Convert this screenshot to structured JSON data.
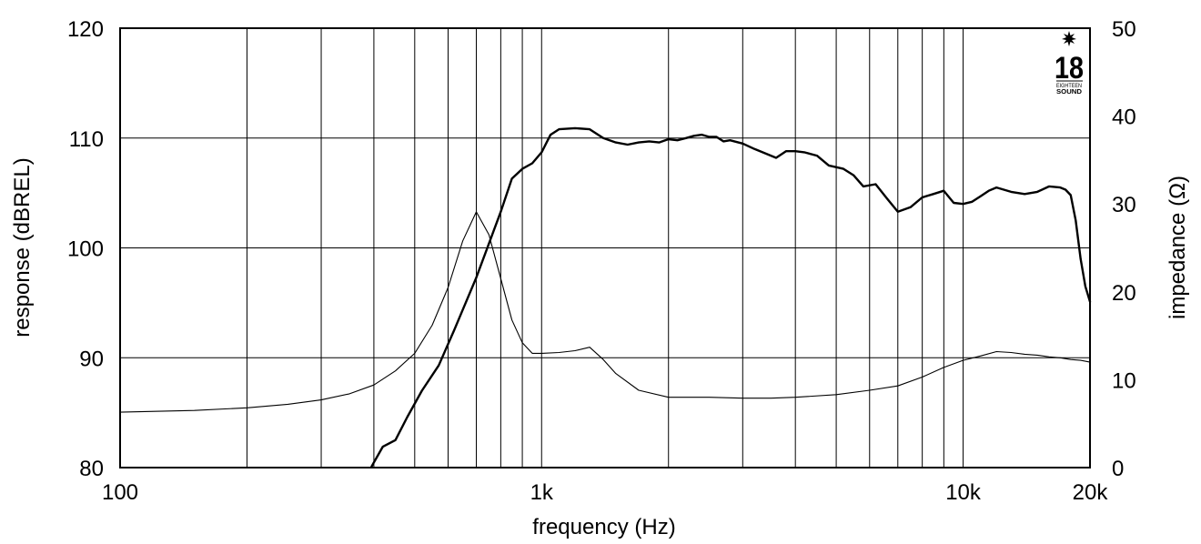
{
  "chart_data": {
    "type": "line",
    "xlabel": "frequency (Hz)",
    "ylabel_left": "response (dBREL)",
    "ylabel_right": "impedance (Ω)",
    "x_scale": "log",
    "xlim": [
      100,
      20000
    ],
    "ylim_left": [
      80,
      120
    ],
    "ylim_right": [
      0,
      50
    ],
    "grid": true,
    "x_ticks": [
      {
        "value": 100,
        "label": "100"
      },
      {
        "value": 1000,
        "label": "1k"
      },
      {
        "value": 10000,
        "label": "10k"
      },
      {
        "value": 20000,
        "label": "20k"
      }
    ],
    "x_gridlines": [
      200,
      300,
      400,
      500,
      600,
      700,
      800,
      900,
      1000,
      2000,
      3000,
      4000,
      5000,
      6000,
      7000,
      8000,
      9000,
      10000
    ],
    "y_left_ticks": [
      80,
      90,
      100,
      110,
      120
    ],
    "y_right_ticks": [
      0,
      10,
      20,
      30,
      40,
      50
    ],
    "series": [
      {
        "axis": "left",
        "style": "thick",
        "x": [
          395,
          420,
          450,
          480,
          520,
          570,
          620,
          700,
          760,
          800,
          850,
          900,
          950,
          1000,
          1050,
          1100,
          1200,
          1300,
          1400,
          1500,
          1600,
          1700,
          1800,
          1900,
          2000,
          2100,
          2200,
          2300,
          2400,
          2500,
          2600,
          2700,
          2800,
          3000,
          3200,
          3400,
          3600,
          3800,
          4000,
          4200,
          4500,
          4800,
          5200,
          5500,
          5800,
          6200,
          6600,
          7000,
          7500,
          8000,
          8500,
          9000,
          9500,
          10000,
          10500,
          11000,
          11500,
          12000,
          13000,
          14000,
          15000,
          16000,
          17000,
          17500,
          18000,
          18500,
          19000,
          19500,
          20000
        ],
        "y": [
          80.1,
          81.9,
          82.5,
          84.6,
          87.0,
          89.3,
          92.5,
          97.3,
          101.0,
          103.3,
          106.3,
          107.2,
          107.7,
          108.7,
          110.3,
          110.8,
          110.9,
          110.8,
          110.0,
          109.6,
          109.4,
          109.6,
          109.7,
          109.6,
          109.9,
          109.8,
          110.0,
          110.2,
          110.3,
          110.1,
          110.1,
          109.7,
          109.8,
          109.5,
          109.0,
          108.6,
          108.2,
          108.8,
          108.8,
          108.7,
          108.4,
          107.5,
          107.2,
          106.6,
          105.6,
          105.8,
          104.5,
          103.3,
          103.7,
          104.6,
          104.9,
          105.2,
          104.1,
          104.0,
          104.2,
          104.7,
          105.2,
          105.5,
          105.1,
          104.9,
          105.1,
          105.6,
          105.5,
          105.3,
          104.8,
          102.5,
          99.0,
          96.5,
          95.1
        ]
      },
      {
        "axis": "right",
        "style": "thin",
        "x": [
          100,
          150,
          200,
          250,
          300,
          350,
          400,
          450,
          500,
          550,
          600,
          650,
          700,
          750,
          800,
          850,
          900,
          950,
          1000,
          1100,
          1200,
          1300,
          1400,
          1500,
          1700,
          2000,
          2500,
          3000,
          3500,
          4000,
          5000,
          6000,
          7000,
          8000,
          9000,
          10000,
          11000,
          12000,
          13000,
          14000,
          15000,
          16000,
          17000,
          18000,
          19000,
          20000
        ],
        "y": [
          6.3,
          6.5,
          6.8,
          7.2,
          7.7,
          8.4,
          9.4,
          11.0,
          13.0,
          16.2,
          20.5,
          25.8,
          29.1,
          26.5,
          21.5,
          16.8,
          14.2,
          13.0,
          13.0,
          13.1,
          13.3,
          13.7,
          12.3,
          10.7,
          8.8,
          8.0,
          8.0,
          7.9,
          7.9,
          8.0,
          8.3,
          8.8,
          9.3,
          10.3,
          11.4,
          12.2,
          12.7,
          13.2,
          13.1,
          12.9,
          12.8,
          12.6,
          12.5,
          12.3,
          12.2,
          12.0
        ]
      }
    ]
  },
  "logo": {
    "text_big": "18",
    "text_line1": "EIGHTEEN",
    "text_line2": "SOUND"
  }
}
